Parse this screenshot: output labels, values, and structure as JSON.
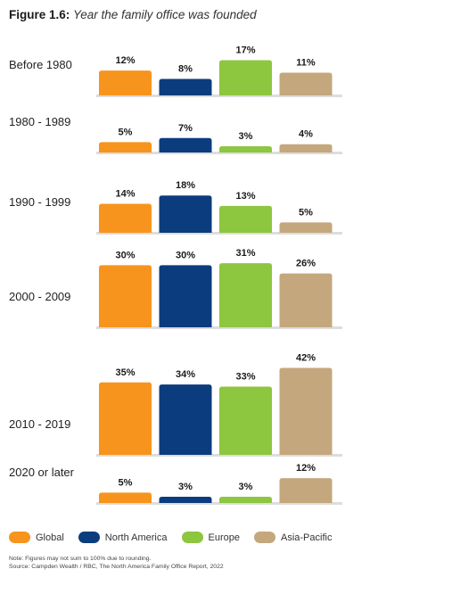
{
  "title": {
    "figure": "Figure 1.6:",
    "subtitle": "Year the family office was founded"
  },
  "colors": {
    "Global": "#F7941D",
    "North America": "#0B3C7D",
    "Europe": "#8DC63F",
    "Asia-Pacific": "#C4A77D",
    "baseline": "#dddddd"
  },
  "chart_data": {
    "type": "bar",
    "categories": [
      "Before 1980",
      "1980 - 1989",
      "1990 - 1999",
      "2000 - 2009",
      "2010 - 2019",
      "2020 or later"
    ],
    "series": [
      {
        "name": "Global",
        "values": [
          12,
          5,
          14,
          30,
          35,
          5
        ]
      },
      {
        "name": "North America",
        "values": [
          8,
          7,
          18,
          30,
          34,
          3
        ]
      },
      {
        "name": "Europe",
        "values": [
          17,
          3,
          13,
          31,
          33,
          3
        ]
      },
      {
        "name": "Asia-Pacific",
        "values": [
          11,
          4,
          5,
          26,
          42,
          12
        ]
      }
    ],
    "value_labels": [
      [
        "12%",
        "8%",
        "17%",
        "11%"
      ],
      [
        "5%",
        "7%",
        "3%",
        "4%"
      ],
      [
        "14%",
        "18%",
        "13%",
        "5%"
      ],
      [
        "30%",
        "30%",
        "31%",
        "26%"
      ],
      [
        "35%",
        "34%",
        "33%",
        "42%"
      ],
      [
        "5%",
        "3%",
        "3%",
        "12%"
      ]
    ],
    "unit": "%",
    "legend_position": "bottom"
  },
  "legend": [
    "Global",
    "North America",
    "Europe",
    "Asia-Pacific"
  ],
  "note": "Note: Figures may not sum to 100% due to rounding.",
  "source": "Source: Campden Wealth / RBC, The North America Family Office Report, 2022"
}
